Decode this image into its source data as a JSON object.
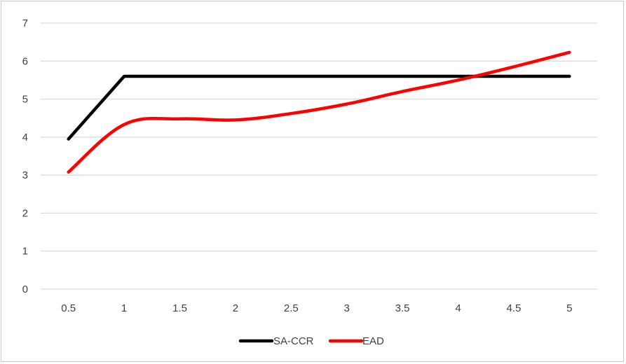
{
  "chart_data": {
    "type": "line",
    "title": "",
    "xlabel": "",
    "ylabel": "",
    "categories": [
      "0.5",
      "1",
      "1.5",
      "2",
      "2.5",
      "3",
      "3.5",
      "4",
      "4.5",
      "5"
    ],
    "ylim": [
      0,
      7
    ],
    "yticks": [
      "0",
      "1",
      "2",
      "3",
      "4",
      "5",
      "6",
      "7"
    ],
    "grid": true,
    "legend_position": "bottom",
    "series": [
      {
        "name": "SA-CCR",
        "color": "#000000",
        "values": [
          3.95,
          5.6,
          5.6,
          5.6,
          5.6,
          5.6,
          5.6,
          5.6,
          5.6,
          5.6
        ]
      },
      {
        "name": "EAD",
        "color": "#ff0000",
        "values": [
          3.08,
          4.33,
          4.48,
          4.45,
          4.62,
          4.87,
          5.2,
          5.5,
          5.85,
          6.23
        ]
      }
    ]
  }
}
